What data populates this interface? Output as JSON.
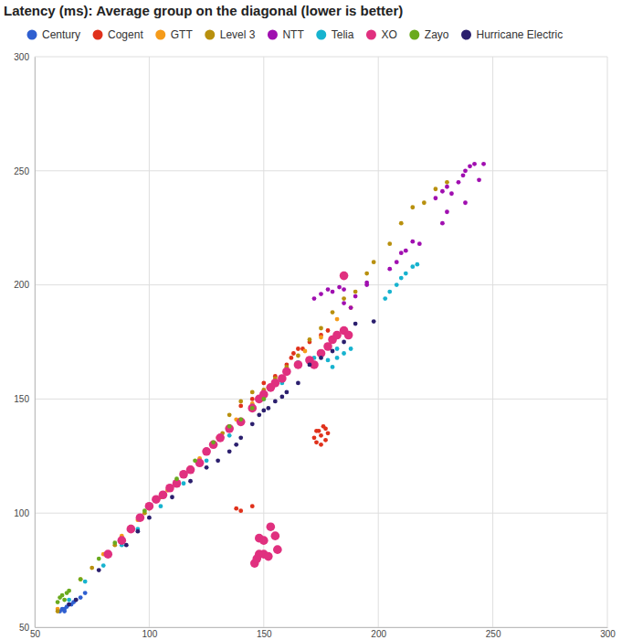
{
  "chart_data": {
    "type": "scatter",
    "title": "Latency (ms): Average group on the diagonal (lower is better)",
    "xlim": [
      50,
      300
    ],
    "xticks": [
      50,
      100,
      150,
      200,
      250,
      300
    ],
    "ylim": [
      50,
      300
    ],
    "yticks": [
      50,
      100,
      150,
      200,
      250,
      300
    ],
    "grid": true,
    "legend": "top",
    "series": [
      {
        "name": "Century",
        "color": "#2f5fd0",
        "marker": "circle",
        "x": [
          61,
          62,
          63,
          63,
          64,
          65,
          66,
          67,
          68,
          70,
          72
        ],
        "values": [
          57,
          58,
          58,
          57,
          59,
          60,
          60,
          61,
          62,
          63,
          65
        ]
      },
      {
        "name": "Cogent",
        "color": "#e0311b",
        "marker": "circle",
        "x": [
          138,
          140,
          145,
          140,
          145,
          150,
          155,
          160,
          160,
          162,
          163,
          165,
          167,
          170,
          175,
          178,
          172,
          173,
          174,
          175,
          176,
          177,
          178,
          175,
          173,
          177
        ],
        "values": [
          102,
          101,
          103,
          147,
          150,
          157,
          160,
          163,
          165,
          168,
          170,
          172,
          172,
          175,
          178,
          180,
          133,
          131,
          136,
          134,
          138,
          137,
          135,
          130,
          136,
          132
        ]
      },
      {
        "name": "GTT",
        "color": "#f59b1a",
        "marker": "circle",
        "x": [
          60,
          70,
          80,
          88,
          95,
          100,
          108,
          115,
          122,
          130,
          138,
          145,
          152,
          160,
          168,
          175,
          182,
          188
        ],
        "values": [
          58,
          71,
          82,
          90,
          97,
          102,
          110,
          117,
          124,
          133,
          141,
          148,
          155,
          163,
          171,
          177,
          185,
          190
        ]
      },
      {
        "name": "Level 3",
        "color": "#b8900e",
        "marker": "circle",
        "x": [
          60,
          75,
          85,
          92,
          98,
          105,
          112,
          118,
          125,
          132,
          135,
          140,
          145,
          150,
          155,
          160,
          165,
          170,
          175,
          180,
          185,
          190,
          195,
          198,
          205,
          210,
          215,
          220,
          225,
          230
        ],
        "values": [
          57,
          76,
          86,
          94,
          100,
          107,
          114,
          120,
          127,
          135,
          143,
          149,
          153,
          154,
          159,
          164,
          169,
          176,
          181,
          188,
          194,
          197,
          205,
          210,
          218,
          227,
          234,
          236,
          242,
          245
        ]
      },
      {
        "name": "NTT",
        "color": "#a00fb0",
        "marker": "circle",
        "x": [
          172,
          175,
          178,
          180,
          183,
          185,
          185,
          188,
          190,
          195,
          195,
          205,
          208,
          210,
          212,
          215,
          218,
          225,
          228,
          228,
          230,
          230,
          232,
          235,
          237,
          238,
          238,
          240,
          242,
          244,
          246
        ],
        "values": [
          194,
          196,
          198,
          197,
          199,
          198,
          192,
          190,
          195,
          200,
          201,
          207,
          210,
          214,
          215,
          219,
          218,
          238,
          241,
          227,
          243,
          232,
          240,
          245,
          248,
          250,
          236,
          252,
          253,
          246,
          253
        ]
      },
      {
        "name": "Telia",
        "color": "#17b3cf",
        "marker": "circle",
        "x": [
          65,
          72,
          80,
          88,
          95,
          105,
          115,
          125,
          135,
          145,
          150,
          158,
          165,
          172,
          178,
          180,
          182,
          185,
          182,
          188,
          203,
          205,
          208,
          210,
          212,
          215,
          217
        ],
        "values": [
          62,
          70,
          77,
          86,
          93,
          103,
          113,
          123,
          134,
          147,
          150,
          157,
          166,
          168,
          167,
          164,
          168,
          170,
          172,
          172,
          194,
          197,
          200,
          203,
          205,
          208,
          209
        ]
      },
      {
        "name": "XO",
        "color": "#e0307f",
        "marker": "large-circle",
        "x": [
          82,
          88,
          92,
          96,
          100,
          103,
          106,
          109,
          112,
          115,
          118,
          122,
          125,
          128,
          131,
          135,
          140,
          145,
          148,
          150,
          153,
          155,
          158,
          160,
          165,
          170,
          172,
          175,
          178,
          180,
          182,
          185,
          187,
          185,
          146,
          147,
          148,
          148,
          150,
          150,
          152,
          153,
          155,
          156
        ],
        "values": [
          82,
          88,
          93,
          98,
          103,
          106,
          108,
          111,
          113,
          117,
          119,
          122,
          127,
          130,
          133,
          137,
          140,
          146,
          150,
          152,
          155,
          157,
          159,
          162,
          165,
          167,
          165,
          170,
          173,
          176,
          178,
          180,
          178,
          204,
          78,
          80,
          82,
          89,
          82,
          88,
          81,
          94,
          90,
          84
        ]
      },
      {
        "name": "Zayo",
        "color": "#6aaa1e",
        "marker": "circle",
        "x": [
          60,
          61,
          62,
          63,
          64,
          65,
          70,
          78,
          85,
          98,
          112,
          120,
          128,
          135,
          140,
          145,
          150
        ],
        "values": [
          61,
          63,
          64,
          62,
          65,
          66,
          71,
          80,
          87,
          101,
          115,
          123,
          131,
          138,
          141,
          146,
          150
        ]
      },
      {
        "name": "Hurricane Electric",
        "color": "#2b1f6e",
        "marker": "circle",
        "x": [
          65,
          68,
          78,
          90,
          95,
          100,
          110,
          118,
          125,
          130,
          135,
          138,
          140,
          145,
          148,
          150,
          152,
          155,
          158,
          160,
          165,
          170,
          175,
          180,
          185,
          190,
          198
        ],
        "values": [
          60,
          62,
          75,
          86,
          92,
          98,
          107,
          114,
          120,
          123,
          127,
          130,
          133,
          139,
          143,
          145,
          146,
          149,
          151,
          153,
          157,
          165,
          168,
          171,
          175,
          183,
          184
        ]
      }
    ]
  }
}
